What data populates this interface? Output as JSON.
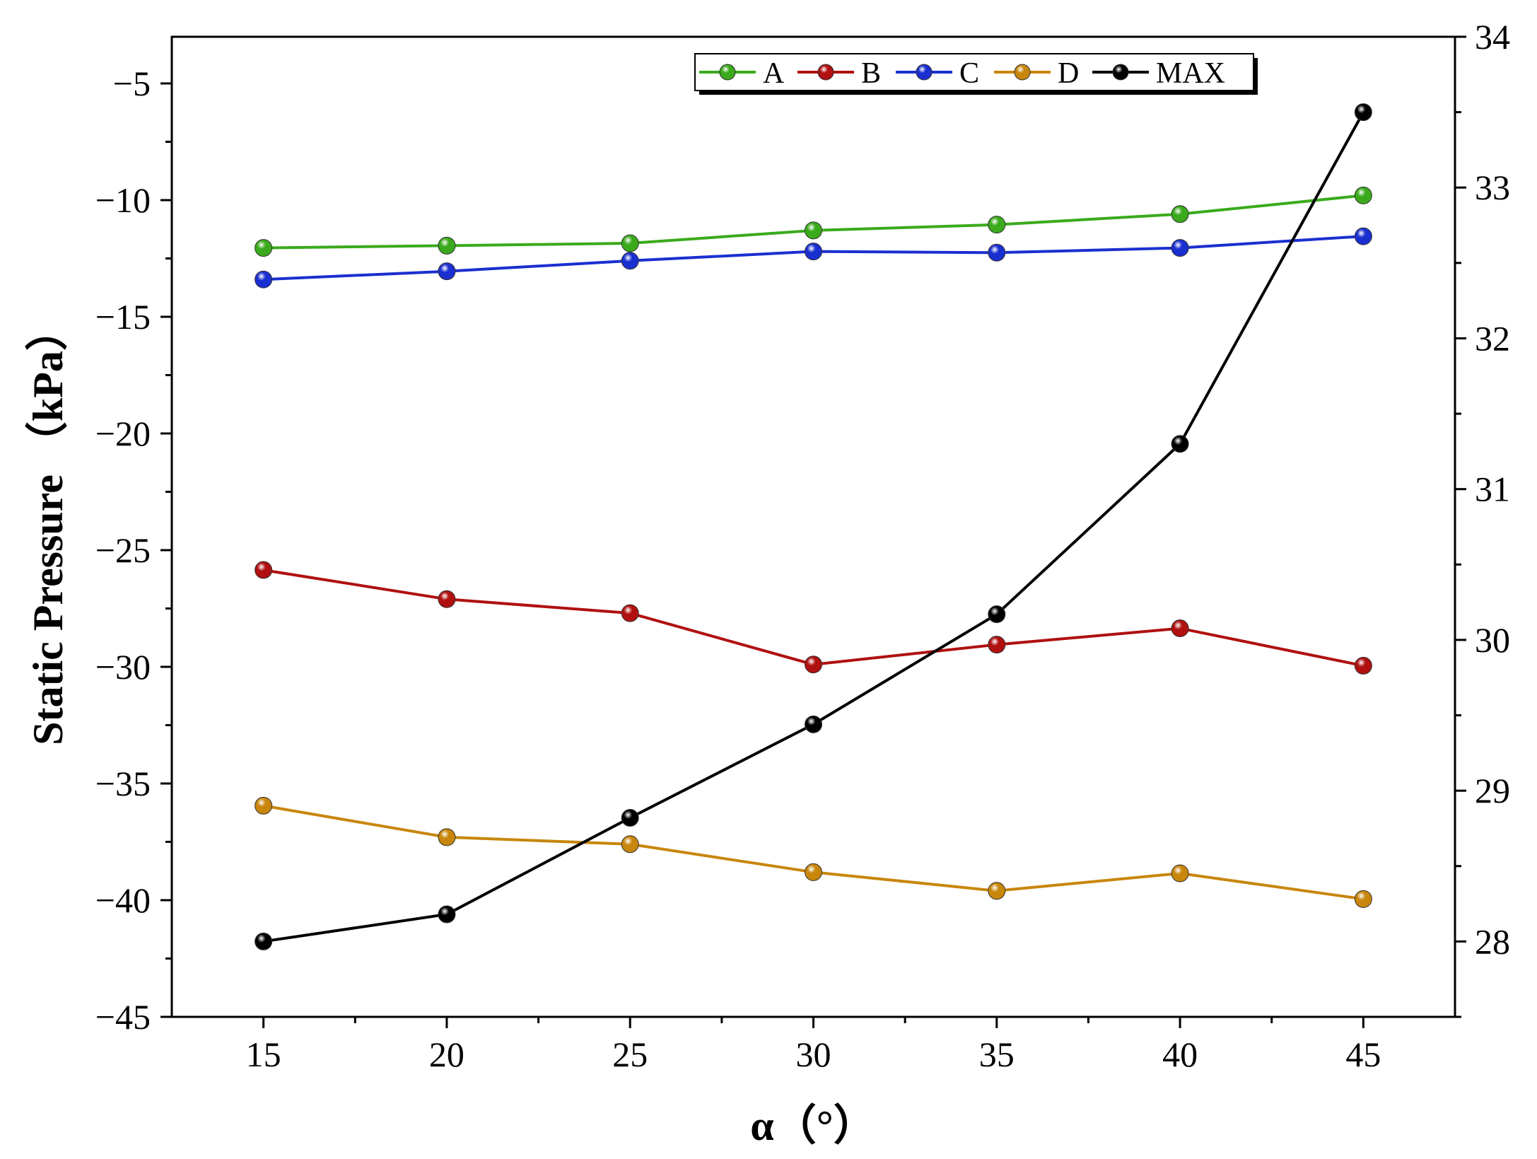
{
  "chart_data": {
    "type": "line",
    "title": "",
    "xlabel": "α（°）",
    "ylabel": "Static Pressure （kPa）",
    "x": [
      15,
      20,
      25,
      30,
      35,
      40,
      45
    ],
    "xlim": [
      12.5,
      47.5
    ],
    "xticks": [
      "15",
      "20",
      "25",
      "30",
      "35",
      "40",
      "45"
    ],
    "ylim": [
      -45,
      -3
    ],
    "yticks": [
      "−5",
      "−10",
      "−15",
      "−20",
      "−25",
      "−30",
      "−35",
      "−40",
      "−45"
    ],
    "y2lim": [
      27.5,
      34
    ],
    "y2ticks": [
      "28",
      "29",
      "30",
      "31",
      "32",
      "33",
      "34"
    ],
    "grid": false,
    "legend_position": "top-right",
    "series": [
      {
        "name": "A",
        "axis": "left",
        "color": "#3aaa1c",
        "values": [
          -12.05,
          -11.95,
          -11.85,
          -11.3,
          -11.05,
          -10.6,
          -9.8
        ]
      },
      {
        "name": "B",
        "axis": "left",
        "color": "#b01010",
        "values": [
          -25.85,
          -27.1,
          -27.7,
          -29.9,
          -29.05,
          -28.35,
          -29.95
        ]
      },
      {
        "name": "C",
        "axis": "left",
        "color": "#1a2fd0",
        "values": [
          -13.4,
          -13.05,
          -12.6,
          -12.2,
          -12.25,
          -12.05,
          -11.55
        ]
      },
      {
        "name": "D",
        "axis": "left",
        "color": "#c8860c",
        "values": [
          -35.95,
          -37.3,
          -37.6,
          -38.8,
          -39.6,
          -38.85,
          -39.95
        ]
      },
      {
        "name": "MAX",
        "axis": "right",
        "color": "#000000",
        "values": [
          28.0,
          28.18,
          28.82,
          29.44,
          30.17,
          31.3,
          33.5
        ]
      }
    ]
  }
}
